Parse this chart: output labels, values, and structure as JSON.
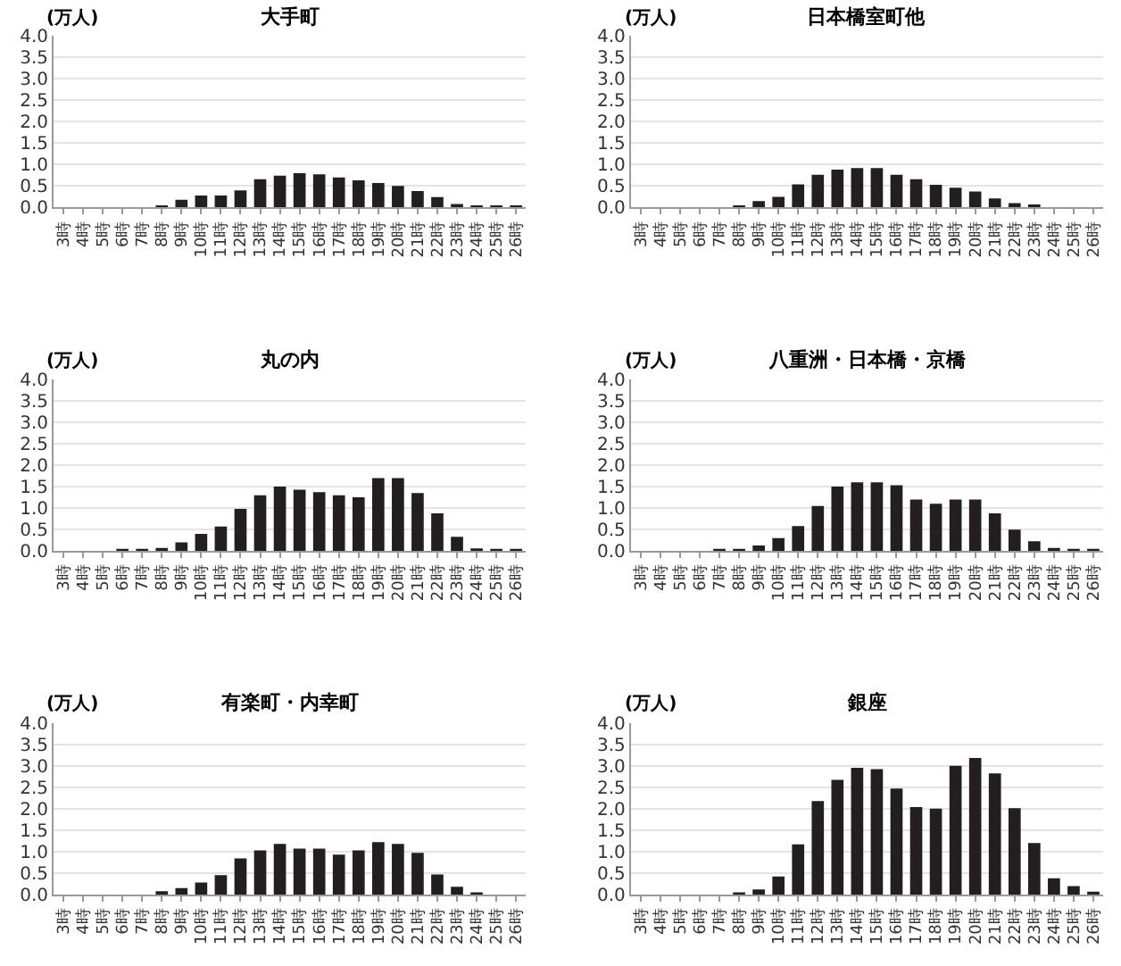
{
  "chart_data": [
    {
      "type": "bar",
      "title": "大手町",
      "ylabel": "(万人)",
      "categories": [
        "3時",
        "4時",
        "5時",
        "6時",
        "7時",
        "8時",
        "9時",
        "10時",
        "11時",
        "12時",
        "13時",
        "14時",
        "15時",
        "16時",
        "17時",
        "18時",
        "19時",
        "20時",
        "21時",
        "22時",
        "23時",
        "24時",
        "25時",
        "26時"
      ],
      "values": [
        0,
        0,
        0,
        0,
        0,
        0.03,
        0.18,
        0.28,
        0.28,
        0.4,
        0.66,
        0.74,
        0.8,
        0.77,
        0.7,
        0.63,
        0.57,
        0.5,
        0.38,
        0.24,
        0.08,
        0.02,
        0.02,
        0.02
      ],
      "color": "#231f20",
      "ylim": [
        0,
        4
      ],
      "yticks": [
        {
          "value": 0,
          "label": "0.0"
        },
        {
          "value": 0.5,
          "label": "0.5"
        },
        {
          "value": 1,
          "label": "1.0"
        },
        {
          "value": 1.5,
          "label": "1.5"
        },
        {
          "value": 2,
          "label": "2.0"
        },
        {
          "value": 2.5,
          "label": "2.5"
        },
        {
          "value": 3,
          "label": "3.0"
        },
        {
          "value": 3.5,
          "label": "3.5"
        },
        {
          "value": 4,
          "label": "4.0"
        }
      ],
      "grid": "y"
    },
    {
      "type": "bar",
      "title": "日本橋室町他",
      "ylabel": "(万人)",
      "categories": [
        "3時",
        "4時",
        "5時",
        "6時",
        "7時",
        "8時",
        "9時",
        "10時",
        "11時",
        "12時",
        "13時",
        "14時",
        "15時",
        "16時",
        "17時",
        "18時",
        "19時",
        "20時",
        "21時",
        "22時",
        "23時",
        "24時",
        "25時",
        "26時"
      ],
      "values": [
        0,
        0,
        0,
        0,
        0,
        0.03,
        0.15,
        0.25,
        0.54,
        0.76,
        0.88,
        0.92,
        0.92,
        0.76,
        0.66,
        0.53,
        0.46,
        0.37,
        0.21,
        0.1,
        0.07,
        0,
        0,
        0
      ],
      "color": "#231f20",
      "ylim": [
        0,
        4
      ],
      "yticks": [
        {
          "value": 0,
          "label": "0.0"
        },
        {
          "value": 0.5,
          "label": "0.5"
        },
        {
          "value": 1,
          "label": "1.0"
        },
        {
          "value": 1.5,
          "label": "1.5"
        },
        {
          "value": 2,
          "label": "2.0"
        },
        {
          "value": 2.5,
          "label": "2.5"
        },
        {
          "value": 3,
          "label": "3.0"
        },
        {
          "value": 3.5,
          "label": "3.5"
        },
        {
          "value": 4,
          "label": "4.0"
        }
      ],
      "grid": "y"
    },
    {
      "type": "bar",
      "title": "丸の内",
      "ylabel": "(万人)",
      "categories": [
        "3時",
        "4時",
        "5時",
        "6時",
        "7時",
        "8時",
        "9時",
        "10時",
        "11時",
        "12時",
        "13時",
        "14時",
        "15時",
        "16時",
        "17時",
        "18時",
        "19時",
        "20時",
        "21時",
        "22時",
        "23時",
        "24時",
        "25時",
        "26時"
      ],
      "values": [
        0,
        0,
        0,
        0.01,
        0.04,
        0.07,
        0.2,
        0.4,
        0.57,
        0.98,
        1.3,
        1.5,
        1.43,
        1.37,
        1.3,
        1.25,
        1.7,
        1.7,
        1.35,
        0.88,
        0.33,
        0.06,
        0.03,
        0.03
      ],
      "color": "#231f20",
      "ylim": [
        0,
        4
      ],
      "yticks": [
        {
          "value": 0,
          "label": "0.0"
        },
        {
          "value": 0.5,
          "label": "0.5"
        },
        {
          "value": 1,
          "label": "1.0"
        },
        {
          "value": 1.5,
          "label": "1.5"
        },
        {
          "value": 2,
          "label": "2.0"
        },
        {
          "value": 2.5,
          "label": "2.5"
        },
        {
          "value": 3,
          "label": "3.0"
        },
        {
          "value": 3.5,
          "label": "3.5"
        },
        {
          "value": 4,
          "label": "4.0"
        }
      ],
      "grid": "y"
    },
    {
      "type": "bar",
      "title": "八重洲・日本橋・京橋",
      "ylabel": "(万人)",
      "categories": [
        "3時",
        "4時",
        "5時",
        "6時",
        "7時",
        "8時",
        "9時",
        "10時",
        "11時",
        "12時",
        "13時",
        "14時",
        "15時",
        "16時",
        "17時",
        "18時",
        "19時",
        "20時",
        "21時",
        "22時",
        "23時",
        "24時",
        "25時",
        "26時"
      ],
      "values": [
        0,
        0,
        0,
        0,
        0.03,
        0.03,
        0.13,
        0.3,
        0.58,
        1.05,
        1.5,
        1.6,
        1.6,
        1.53,
        1.2,
        1.1,
        1.2,
        1.2,
        0.88,
        0.5,
        0.23,
        0.07,
        0.03,
        0.02
      ],
      "color": "#231f20",
      "ylim": [
        0,
        4
      ],
      "yticks": [
        {
          "value": 0,
          "label": "0.0"
        },
        {
          "value": 0.5,
          "label": "0.5"
        },
        {
          "value": 1,
          "label": "1.0"
        },
        {
          "value": 1.5,
          "label": "1.5"
        },
        {
          "value": 2,
          "label": "2.0"
        },
        {
          "value": 2.5,
          "label": "2.5"
        },
        {
          "value": 3,
          "label": "3.0"
        },
        {
          "value": 3.5,
          "label": "3.5"
        },
        {
          "value": 4,
          "label": "4.0"
        }
      ],
      "grid": "y"
    },
    {
      "type": "bar",
      "title": "有楽町・内幸町",
      "ylabel": "(万人)",
      "categories": [
        "3時",
        "4時",
        "5時",
        "6時",
        "7時",
        "8時",
        "9時",
        "10時",
        "11時",
        "12時",
        "13時",
        "14時",
        "15時",
        "16時",
        "17時",
        "18時",
        "19時",
        "20時",
        "21時",
        "22時",
        "23時",
        "24時",
        "25時",
        "26時"
      ],
      "values": [
        0,
        0,
        0,
        0,
        0,
        0.08,
        0.15,
        0.28,
        0.45,
        0.84,
        1.03,
        1.18,
        1.07,
        1.07,
        0.93,
        1.03,
        1.22,
        1.18,
        0.97,
        0.47,
        0.18,
        0.05,
        0,
        0
      ],
      "color": "#231f20",
      "ylim": [
        0,
        4
      ],
      "yticks": [
        {
          "value": 0,
          "label": "0.0"
        },
        {
          "value": 0.5,
          "label": "0.5"
        },
        {
          "value": 1,
          "label": "1.0"
        },
        {
          "value": 1.5,
          "label": "1.5"
        },
        {
          "value": 2,
          "label": "2.0"
        },
        {
          "value": 2.5,
          "label": "2.5"
        },
        {
          "value": 3,
          "label": "3.0"
        },
        {
          "value": 3.5,
          "label": "3.5"
        },
        {
          "value": 4,
          "label": "4.0"
        }
      ],
      "grid": "y"
    },
    {
      "type": "bar",
      "title": "銀座",
      "ylabel": "(万人)",
      "categories": [
        "3時",
        "4時",
        "5時",
        "6時",
        "7時",
        "8時",
        "9時",
        "10時",
        "11時",
        "12時",
        "13時",
        "14時",
        "15時",
        "16時",
        "17時",
        "18時",
        "19時",
        "20時",
        "21時",
        "22時",
        "23時",
        "24時",
        "25時",
        "26時"
      ],
      "values": [
        0,
        0,
        0,
        0,
        0,
        0.02,
        0.12,
        0.42,
        1.17,
        2.18,
        2.67,
        2.95,
        2.92,
        2.47,
        2.04,
        2.0,
        3.0,
        3.18,
        2.82,
        2.01,
        1.2,
        0.38,
        0.2,
        0.07
      ],
      "color": "#231f20",
      "ylim": [
        0,
        4
      ],
      "yticks": [
        {
          "value": 0,
          "label": "0.0"
        },
        {
          "value": 0.5,
          "label": "0.5"
        },
        {
          "value": 1,
          "label": "1.0"
        },
        {
          "value": 1.5,
          "label": "1.5"
        },
        {
          "value": 2,
          "label": "2.0"
        },
        {
          "value": 2.5,
          "label": "2.5"
        },
        {
          "value": 3,
          "label": "3.0"
        },
        {
          "value": 3.5,
          "label": "3.5"
        },
        {
          "value": 4,
          "label": "4.0"
        }
      ],
      "grid": "y"
    }
  ]
}
